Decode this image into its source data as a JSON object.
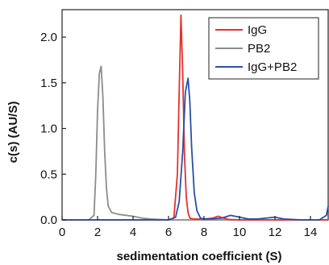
{
  "chart_data": {
    "type": "line",
    "xlabel": "sedimentation coefficient (S)",
    "ylabel": "c(s) (AU/S)",
    "xlim": [
      0,
      15
    ],
    "ylim": [
      0,
      2.3
    ],
    "xticks": [
      0,
      2,
      4,
      6,
      8,
      10,
      12,
      14
    ],
    "yticks": [
      0.0,
      0.5,
      1.0,
      1.5,
      2.0
    ],
    "ytick_labels": [
      "0.0",
      "0.5",
      "1.0",
      "1.5",
      "2.0"
    ],
    "grid": false,
    "legend_position": "top-right",
    "series": [
      {
        "name": "IgG",
        "color": "#e8302a",
        "x": [
          0,
          6.0,
          6.3,
          6.5,
          6.6,
          6.7,
          6.8,
          6.9,
          7.0,
          7.1,
          7.2,
          7.4,
          7.6,
          8.0,
          8.5,
          8.8,
          9.1,
          9.4,
          10.0,
          15
        ],
        "y": [
          0,
          0,
          0.02,
          0.5,
          1.4,
          2.24,
          1.6,
          0.7,
          0.25,
          0.08,
          0.02,
          0.01,
          0.01,
          0.01,
          0.02,
          0.04,
          0.02,
          0.005,
          0,
          0
        ]
      },
      {
        "name": "PB2",
        "color": "#8c8c8c",
        "x": [
          0,
          1.5,
          1.8,
          1.9,
          2.0,
          2.1,
          2.2,
          2.3,
          2.4,
          2.5,
          2.6,
          2.8,
          3.2,
          3.6,
          4.0,
          4.5,
          5.0,
          6.0,
          15
        ],
        "y": [
          0,
          0,
          0.05,
          0.5,
          1.2,
          1.6,
          1.68,
          1.35,
          0.75,
          0.35,
          0.15,
          0.08,
          0.06,
          0.05,
          0.04,
          0.02,
          0.01,
          0,
          0
        ]
      },
      {
        "name": "IgG+PB2",
        "color": "#2a4fa8",
        "x": [
          0,
          6.0,
          6.4,
          6.6,
          6.8,
          6.95,
          7.1,
          7.2,
          7.3,
          7.45,
          7.6,
          7.8,
          8.0,
          8.4,
          9.0,
          9.5,
          10.0,
          10.5,
          11.0,
          11.5,
          12.0,
          12.5,
          13.5,
          14.5,
          14.9,
          15.0
        ],
        "y": [
          0,
          0,
          0.03,
          0.2,
          0.75,
          1.4,
          1.55,
          1.3,
          0.8,
          0.3,
          0.1,
          0.02,
          0.01,
          0.01,
          0.02,
          0.05,
          0.03,
          0.01,
          0.01,
          0.02,
          0.03,
          0.01,
          0,
          0,
          0.05,
          0.15
        ]
      }
    ]
  }
}
